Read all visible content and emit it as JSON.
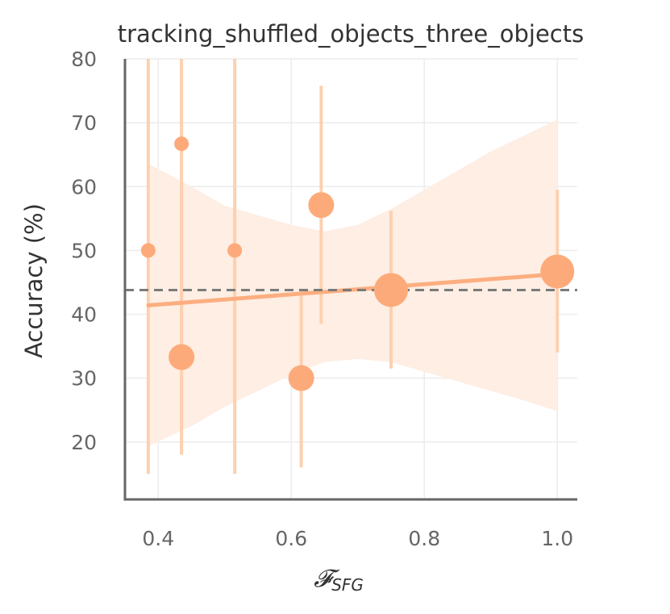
{
  "chart_data": {
    "type": "scatter",
    "title": "tracking_shuffled_objects_three_objects",
    "xlabel": "𝓕",
    "xlabel_subscript": "SFG",
    "ylabel": "Accuracy (%)",
    "xlim": [
      0.35,
      1.03
    ],
    "ylim": [
      11,
      80
    ],
    "x_ticks": [
      "0.4",
      "0.6",
      "0.8",
      "1.0"
    ],
    "x_tick_values": [
      0.4,
      0.6,
      0.8,
      1.0
    ],
    "y_ticks": [
      "20",
      "30",
      "40",
      "50",
      "60",
      "70",
      "80"
    ],
    "y_tick_values": [
      20,
      30,
      40,
      50,
      60,
      70,
      80
    ],
    "grid": true,
    "colors": {
      "point": "#fdaa7a",
      "errorbar": "#fdd0b0",
      "band": "#feeee3",
      "line": "#fcae80",
      "baseline": "#7a7a7a",
      "axis": "#666666",
      "grid": "#ececec"
    },
    "points": [
      {
        "x": 0.385,
        "y": 50.0,
        "ylow": 15.0,
        "yhigh": 80.0,
        "size": "small"
      },
      {
        "x": 0.435,
        "y": 66.7,
        "ylow": 31.0,
        "yhigh": 80.0,
        "size": "small"
      },
      {
        "x": 0.435,
        "y": 33.3,
        "ylow": 18.0,
        "yhigh": 49.0,
        "size": "medium"
      },
      {
        "x": 0.515,
        "y": 50.0,
        "ylow": 15.0,
        "yhigh": 80.0,
        "size": "small"
      },
      {
        "x": 0.615,
        "y": 30.0,
        "ylow": 16.0,
        "yhigh": 44.0,
        "size": "medium"
      },
      {
        "x": 0.645,
        "y": 57.1,
        "ylow": 38.5,
        "yhigh": 75.8,
        "size": "medium"
      },
      {
        "x": 0.75,
        "y": 43.8,
        "ylow": 31.5,
        "yhigh": 56.2,
        "size": "large"
      },
      {
        "x": 1.0,
        "y": 46.7,
        "ylow": 34.0,
        "yhigh": 59.5,
        "size": "large"
      }
    ],
    "regression": {
      "x": [
        0.385,
        1.0
      ],
      "y": [
        41.4,
        46.3
      ]
    },
    "confidence_band": {
      "x": [
        0.385,
        0.45,
        0.5,
        0.55,
        0.6,
        0.65,
        0.7,
        0.75,
        0.8,
        0.85,
        0.9,
        0.95,
        1.0
      ],
      "upper": [
        63.6,
        60.0,
        57.0,
        55.5,
        54.0,
        53.0,
        54.0,
        56.5,
        59.5,
        62.5,
        65.5,
        68.0,
        70.5
      ],
      "lower": [
        19.3,
        22.5,
        25.5,
        28.0,
        30.5,
        32.5,
        33.0,
        32.5,
        31.0,
        29.5,
        28.0,
        26.5,
        24.8
      ]
    },
    "baseline_y": 43.8
  }
}
